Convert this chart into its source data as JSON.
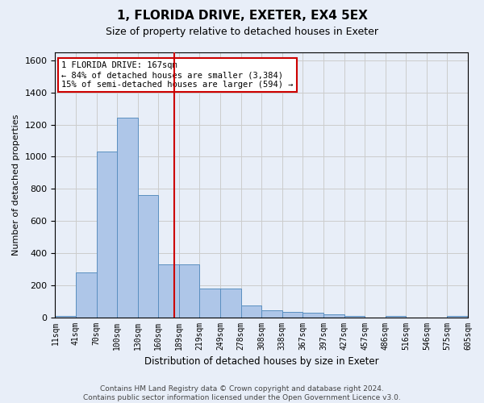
{
  "title": "1, FLORIDA DRIVE, EXETER, EX4 5EX",
  "subtitle": "Size of property relative to detached houses in Exeter",
  "xlabel": "Distribution of detached houses by size in Exeter",
  "ylabel": "Number of detached properties",
  "footer_line1": "Contains HM Land Registry data © Crown copyright and database right 2024.",
  "footer_line2": "Contains public sector information licensed under the Open Government Licence v3.0.",
  "bar_values": [
    10,
    280,
    1030,
    1245,
    760,
    330,
    330,
    180,
    180,
    75,
    45,
    35,
    30,
    20,
    10,
    0,
    10,
    0,
    0,
    10
  ],
  "bin_labels": [
    "11sqm",
    "41sqm",
    "70sqm",
    "100sqm",
    "130sqm",
    "160sqm",
    "189sqm",
    "219sqm",
    "249sqm",
    "278sqm",
    "308sqm",
    "338sqm",
    "367sqm",
    "397sqm",
    "427sqm",
    "457sqm",
    "486sqm",
    "516sqm",
    "546sqm",
    "575sqm",
    "605sqm"
  ],
  "bar_color": "#aec6e8",
  "bar_edge_color": "#5a8fc0",
  "property_label": "1 FLORIDA DRIVE: 167sqm",
  "annotation_line1": "← 84% of detached houses are smaller (3,384)",
  "annotation_line2": "15% of semi-detached houses are larger (594) →",
  "vline_color": "#cc0000",
  "vline_x": 5.27,
  "ylim": [
    0,
    1650
  ],
  "yticks": [
    0,
    200,
    400,
    600,
    800,
    1000,
    1200,
    1400,
    1600
  ],
  "grid_color": "#cccccc",
  "background_color": "#e8eef8"
}
